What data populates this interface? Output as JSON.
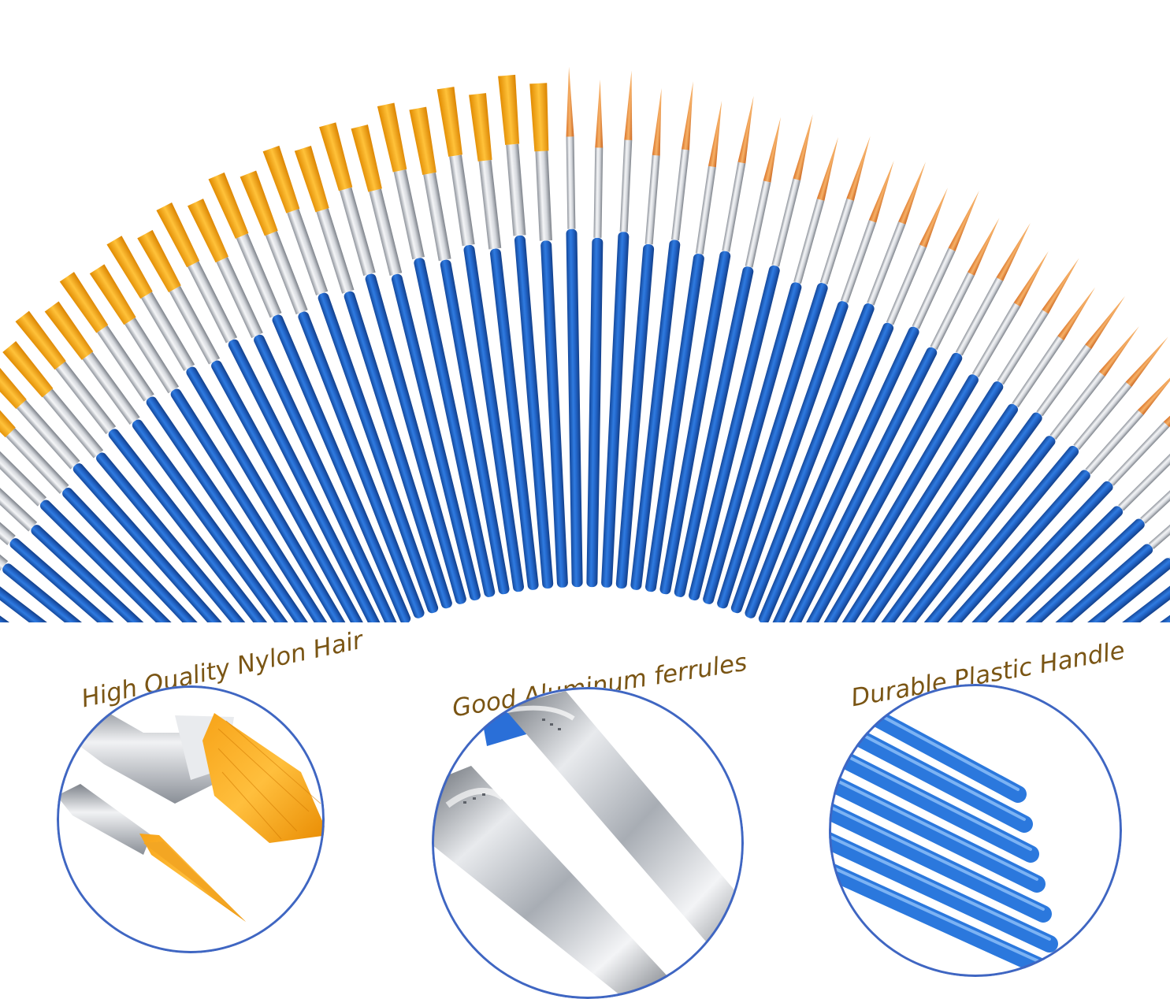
{
  "image": {
    "subject": "paint-brush-set",
    "fan": {
      "flat_brush_count": 32,
      "round_brush_count": 34,
      "handle_color": "#1f63c9",
      "handle_highlight": "#4f8fe6",
      "bristle_color": "#f2a50c",
      "ferrule_color": "#c9ccd2"
    },
    "colors": {
      "caption_text": "#7a5514",
      "circle_border": "#3f66c2",
      "background": "#ffffff"
    }
  },
  "features": [
    {
      "caption": "High Quality Nylon Hair",
      "icon": "nylon-hair-closeup"
    },
    {
      "caption": "Good Aluminum ferrules",
      "icon": "aluminum-ferrule-closeup"
    },
    {
      "caption": "Durable Plastic Handle",
      "icon": "plastic-handle-closeup"
    }
  ]
}
